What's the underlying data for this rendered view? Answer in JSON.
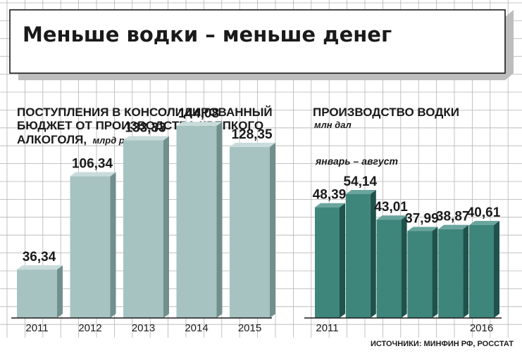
{
  "headline": "Меньше водки – меньше денег",
  "source": "ИСТОЧНИКИ: МИНФИН РФ, РОССТАТ",
  "colors": {
    "left_bar_front": "#a6c3c1",
    "left_bar_side": "#718f8d",
    "left_bar_top": "#c9dcdb",
    "right_bar_front": "#3e857c",
    "right_bar_side": "#1e524b",
    "right_bar_top": "#6aa59d",
    "grid": "#b4b4b4",
    "banner_shadow": "#bdbdbd"
  },
  "chart_data": [
    {
      "type": "bar",
      "title_lines": [
        "ПОСТУПЛЕНИЯ В КОНСОЛИДИРОВАННЫЙ",
        "БЮДЖЕТ ОТ ПРОИЗВОДСТВА КРЕПКОГО",
        "АЛКОГОЛЯ,"
      ],
      "unit": "млрд руб.",
      "categories": [
        "2011",
        "2012",
        "2013",
        "2014",
        "2015"
      ],
      "values": [
        36.34,
        106.34,
        133.33,
        144.08,
        128.35
      ],
      "value_labels": [
        "36,34",
        "106,34",
        "133,33",
        "144,08",
        "128,35"
      ],
      "ylim": [
        0,
        160
      ],
      "grid": true
    },
    {
      "type": "bar",
      "title_lines": [
        "ПРОИЗВОДСТВО ВОДКИ"
      ],
      "unit": "млн дал",
      "note": "январь – август",
      "categories": [
        "2011",
        "",
        "",
        "",
        "",
        "2016"
      ],
      "values": [
        48.39,
        54.14,
        43.01,
        37.99,
        38.87,
        40.61
      ],
      "value_labels": [
        "48,39",
        "54,14",
        "43,01",
        "37,99",
        "38,87",
        "40,61"
      ],
      "ylim": [
        0,
        60
      ],
      "grid": true
    }
  ]
}
